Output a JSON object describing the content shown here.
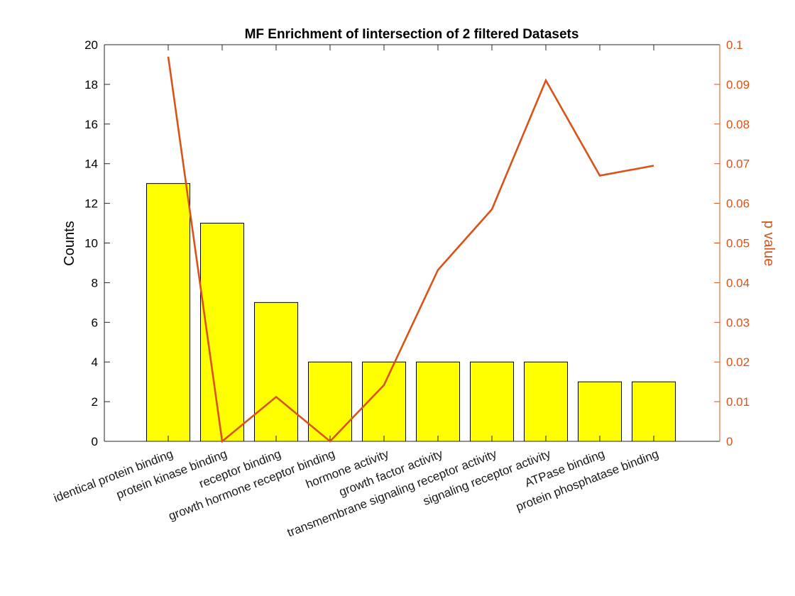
{
  "chart_data": {
    "type": "bar",
    "title": "MF Enrichment of Iintersection of 2 filtered Datasets",
    "xlabel": "",
    "ylabel": "Counts",
    "y2label": "p value",
    "categories": [
      "identical protein binding",
      "protein kinase binding",
      "receptor binding",
      "growth hormone receptor binding",
      "hormone activity",
      "growth factor activity",
      "transmembrane signaling receptor activity",
      "signaling receptor activity",
      "ATPase binding",
      "protein phosphatase binding"
    ],
    "ylim": [
      0,
      20
    ],
    "yticks": [
      "0",
      "2",
      "4",
      "6",
      "8",
      "10",
      "12",
      "14",
      "16",
      "18",
      "20"
    ],
    "y2lim": [
      0,
      0.1
    ],
    "y2ticks": [
      "0",
      "0.01",
      "0.02",
      "0.03",
      "0.04",
      "0.05",
      "0.06",
      "0.07",
      "0.08",
      "0.09",
      "0.1"
    ],
    "series": [
      {
        "type": "bar",
        "axis": "left",
        "color": "#ffff00",
        "values": [
          13,
          11,
          7,
          4,
          4,
          4,
          4,
          4,
          3,
          3
        ]
      },
      {
        "type": "line",
        "axis": "right",
        "color": "#d95319",
        "values": [
          0.097,
          0.0,
          0.0112,
          0.0,
          0.0142,
          0.0432,
          0.0585,
          0.091,
          0.067,
          0.0695
        ]
      }
    ],
    "grid": false,
    "legend": "none"
  }
}
